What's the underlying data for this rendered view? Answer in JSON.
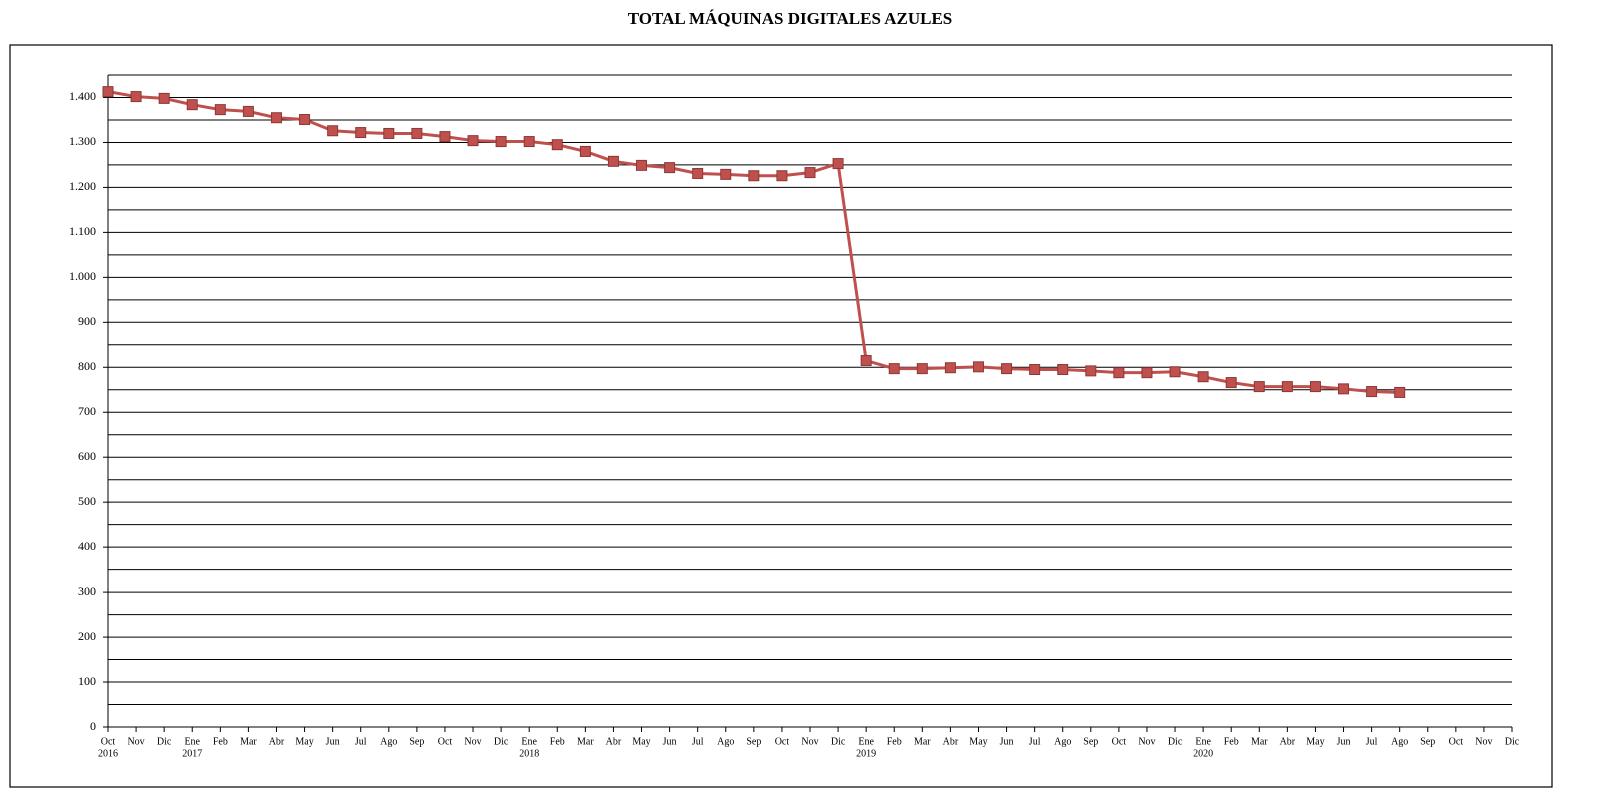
{
  "chart_data": {
    "type": "line",
    "title": "TOTAL MÁQUINAS DIGITALES AZULES",
    "categories": [
      "Oct",
      "Nov",
      "Dic",
      "Ene",
      "Feb",
      "Mar",
      "Abr",
      "May",
      "Jun",
      "Jul",
      "Ago",
      "Sep",
      "Oct",
      "Nov",
      "Dic",
      "Ene",
      "Feb",
      "Mar",
      "Abr",
      "May",
      "Jun",
      "Jul",
      "Ago",
      "Sep",
      "Oct",
      "Nov",
      "Dic",
      "Ene",
      "Feb",
      "Mar",
      "Abr",
      "May",
      "Jun",
      "Jul",
      "Ago",
      "Sep",
      "Oct",
      "Nov",
      "Dic",
      "Ene",
      "Feb",
      "Mar",
      "Abr",
      "May",
      "Jun",
      "Jul",
      "Ago",
      "Sep",
      "Oct",
      "Nov",
      "Dic"
    ],
    "years": [
      "2016",
      null,
      null,
      "2017",
      null,
      null,
      null,
      null,
      null,
      null,
      null,
      null,
      null,
      null,
      null,
      "2018",
      null,
      null,
      null,
      null,
      null,
      null,
      null,
      null,
      null,
      null,
      null,
      "2019",
      null,
      null,
      null,
      null,
      null,
      null,
      null,
      null,
      null,
      null,
      null,
      "2020",
      null,
      null,
      null,
      null,
      null,
      null,
      null,
      null,
      null,
      null,
      null
    ],
    "series": [
      {
        "color": "#c0504d",
        "values": [
          1413,
          1402,
          1398,
          1384,
          1373,
          1369,
          1355,
          1351,
          1326,
          1322,
          1320,
          1320,
          1313,
          1304,
          1302,
          1302,
          1295,
          1280,
          1258,
          1249,
          1244,
          1231,
          1229,
          1226,
          1226,
          1233,
          1253,
          815,
          797,
          797,
          799,
          801,
          797,
          795,
          795,
          792,
          788,
          788,
          790,
          779,
          766,
          757,
          757,
          757,
          752,
          746,
          744,
          null,
          null,
          null,
          null
        ]
      }
    ],
    "ylim": [
      0,
      1450
    ],
    "yticks": [
      0,
      100,
      200,
      300,
      400,
      500,
      600,
      700,
      800,
      900,
      {
        "value": 1000,
        "label": "1.000"
      },
      {
        "value": 1100,
        "label": "1.100"
      },
      {
        "value": 1200,
        "label": "1.200"
      },
      {
        "value": 1300,
        "label": "1.300"
      },
      {
        "value": 1400,
        "label": "1.400"
      }
    ],
    "minor_yticks": [
      50,
      150,
      250,
      350,
      450,
      550,
      650,
      750,
      850,
      950,
      1050,
      1150,
      1250,
      1350,
      1450
    ],
    "grid": true
  }
}
